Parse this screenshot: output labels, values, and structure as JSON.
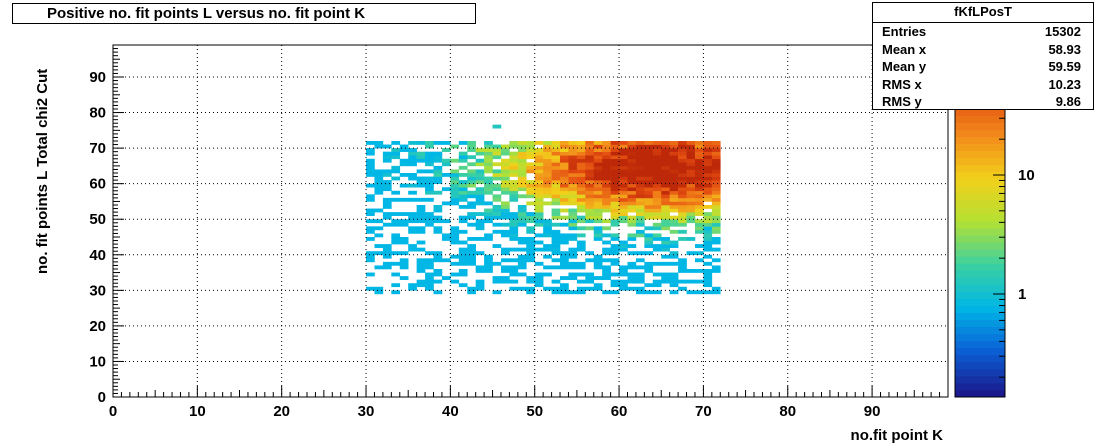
{
  "title": "Positive no. fit points L versus no. fit point K",
  "stats": {
    "name": "fKfLPosT",
    "rows": [
      {
        "label": "Entries",
        "value": "15302"
      },
      {
        "label": "Mean x",
        "value": "58.93"
      },
      {
        "label": "Mean y",
        "value": "59.59"
      },
      {
        "label": "RMS x",
        "value": "10.23"
      },
      {
        "label": "RMS y",
        "value": "9.86"
      }
    ]
  },
  "chart_data": {
    "type": "heatmap",
    "title": "Positive no. fit points L versus no. fit point K",
    "xlabel": "no.fit point K",
    "ylabel": "no. fit points  L   Total chi2 Cut",
    "xlim": [
      0,
      99
    ],
    "ylim": [
      0,
      99
    ],
    "x_ticks": [
      "0",
      "10",
      "20",
      "30",
      "40",
      "50",
      "60",
      "70",
      "80",
      "90"
    ],
    "y_ticks": [
      "0",
      "10",
      "20",
      "30",
      "40",
      "50",
      "60",
      "70",
      "80",
      "90"
    ],
    "x_occupied_range": [
      30,
      72
    ],
    "y_occupied_range": [
      29,
      72
    ],
    "hot_spot": {
      "x": 63,
      "y": 63
    },
    "z_scale": "log",
    "z_ticks": [
      "1",
      "10"
    ],
    "grid": true,
    "palette": [
      "#1a1a8c",
      "#0b5fd6",
      "#00b7e6",
      "#3dd1a0",
      "#b4e033",
      "#f2d01a",
      "#f2891a",
      "#e24a10",
      "#b01d05"
    ]
  }
}
